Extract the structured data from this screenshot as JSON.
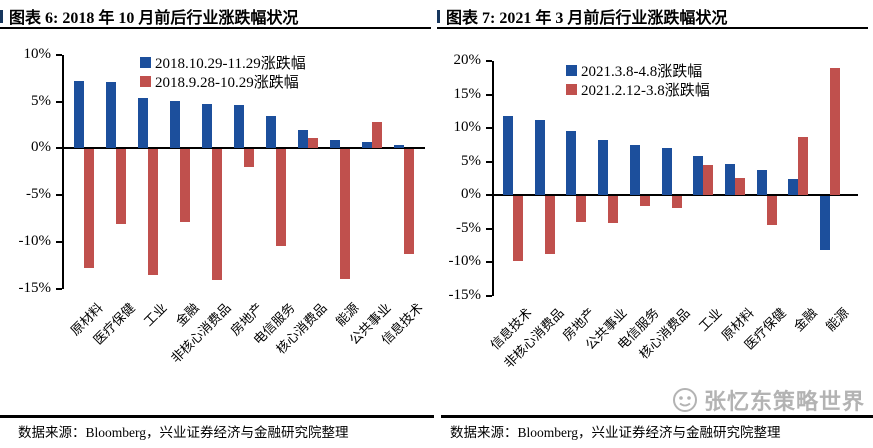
{
  "chart_data": [
    {
      "type": "bar",
      "title": "图表 6: 2018 年 10 月前后行业涨跌幅状况",
      "source": "数据来源：Bloomberg，兴业证券经济与金融研究院整理",
      "categories": [
        "原材料",
        "医疗保健",
        "工业",
        "金融",
        "非核心消费品",
        "房地产",
        "电信服务",
        "核心消费品",
        "能源",
        "公共事业",
        "信息技术"
      ],
      "series": [
        {
          "name": "2018.10.29-11.29涨跌幅",
          "color": "#1C4F9C",
          "values": [
            7.2,
            7.1,
            5.4,
            5.1,
            4.8,
            4.6,
            3.5,
            2.0,
            0.9,
            0.7,
            0.4
          ]
        },
        {
          "name": "2018.9.28-10.29涨跌幅",
          "color": "#C0504D",
          "values": [
            -12.7,
            -8.0,
            -13.5,
            -7.8,
            -14.0,
            -1.9,
            -10.3,
            1.1,
            -13.9,
            2.8,
            -11.2
          ]
        }
      ],
      "ylim": [
        -15,
        10
      ],
      "yticks": [
        10,
        5,
        0,
        -5,
        -10,
        -15
      ],
      "ytick_suffix": "%",
      "grid": false,
      "legend_position": "top-inside"
    },
    {
      "type": "bar",
      "title": "图表 7: 2021 年 3 月前后行业涨跌幅状况",
      "source": "数据来源：Bloomberg，兴业证券经济与金融研究院整理",
      "categories": [
        "信息技术",
        "非核心消费品",
        "房地产",
        "公共事业",
        "电信服务",
        "核心消费品",
        "工业",
        "原材料",
        "医疗保健",
        "金融",
        "能源"
      ],
      "series": [
        {
          "name": "2021.3.8-4.8涨跌幅",
          "color": "#1C4F9C",
          "values": [
            11.8,
            11.2,
            9.5,
            8.3,
            7.5,
            7.0,
            5.8,
            4.6,
            3.8,
            2.4,
            -8.0
          ]
        },
        {
          "name": "2021.2.12-3.8涨跌幅",
          "color": "#C0504D",
          "values": [
            -9.7,
            -8.6,
            -3.9,
            -4.0,
            -1.5,
            -1.7,
            4.5,
            2.5,
            -4.3,
            8.6,
            19.0
          ]
        }
      ],
      "ylim": [
        -15,
        20
      ],
      "yticks": [
        20,
        15,
        10,
        5,
        0,
        -5,
        -10,
        -15
      ],
      "ytick_suffix": "%",
      "grid": false,
      "legend_position": "top-inside"
    }
  ],
  "watermark": {
    "text": "张忆东策略世界",
    "icon": "wechat-smile-icon"
  },
  "colors": {
    "bar_blue": "#1C4F9C",
    "bar_red": "#C0504D",
    "axis": "#000000",
    "watermark_gray": "#B3B3B3"
  }
}
